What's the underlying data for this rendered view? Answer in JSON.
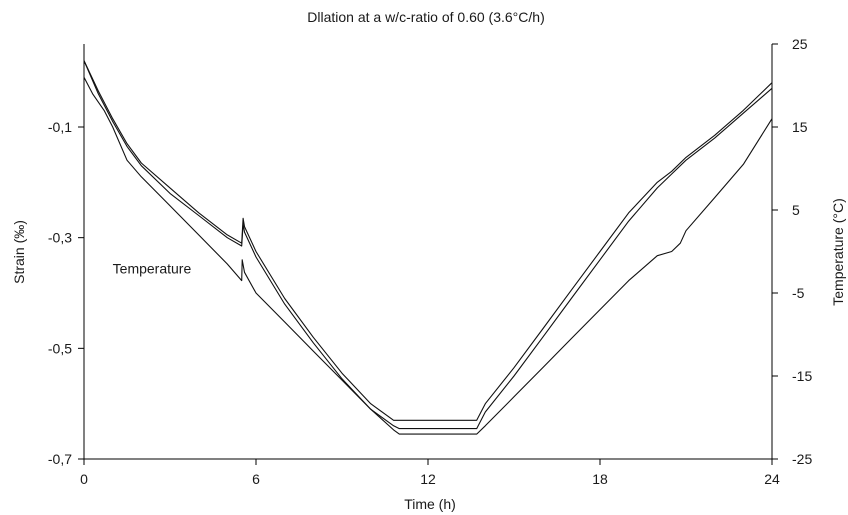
{
  "chart_data": {
    "type": "line",
    "title": "Dllation at a w/c-ratio of 0.60 (3.6°C/h)",
    "xlabel": "Time (h)",
    "ylabel": "Strain (‰)",
    "y2label": "Temperature (°C)",
    "xlim": [
      0,
      24
    ],
    "ylim": [
      -0.7,
      0.05
    ],
    "y2lim": [
      -25,
      25
    ],
    "xticks": [
      "0",
      "6",
      "12",
      "18",
      "24"
    ],
    "yticks": [
      "-0,1",
      "-0,3",
      "-0,5",
      "-0,7"
    ],
    "y2ticks": [
      "25",
      "15",
      "5",
      "-5",
      "-15",
      "-25"
    ],
    "grid": false,
    "annotations": [
      {
        "text": "Temperature",
        "x": 1.0,
        "y": -0.365
      }
    ],
    "series": [
      {
        "name": "",
        "axis": "left",
        "x": [
          0,
          0.5,
          1,
          1.5,
          2,
          3,
          4,
          5,
          5.5,
          5.55,
          5.6,
          6,
          7,
          8,
          9,
          10,
          10.8,
          11,
          12,
          13,
          13.7,
          14,
          15,
          16,
          17,
          18,
          19,
          20,
          20.5,
          21,
          22,
          23,
          24
        ],
        "y": [
          0.02,
          -0.035,
          -0.085,
          -0.13,
          -0.165,
          -0.21,
          -0.255,
          -0.295,
          -0.31,
          -0.265,
          -0.28,
          -0.325,
          -0.41,
          -0.48,
          -0.545,
          -0.6,
          -0.63,
          -0.63,
          -0.63,
          -0.63,
          -0.63,
          -0.6,
          -0.535,
          -0.465,
          -0.395,
          -0.325,
          -0.255,
          -0.2,
          -0.18,
          -0.155,
          -0.115,
          -0.07,
          -0.02
        ]
      },
      {
        "name": "",
        "axis": "left",
        "x": [
          0,
          0.5,
          1,
          1.5,
          2,
          3,
          4,
          5,
          5.5,
          5.55,
          5.6,
          6,
          7,
          8,
          9,
          10,
          10.8,
          11,
          12,
          13,
          13.7,
          14,
          15,
          16,
          17,
          18,
          19,
          20,
          20.5,
          21,
          22,
          23,
          24
        ],
        "y": [
          0.02,
          -0.04,
          -0.09,
          -0.135,
          -0.17,
          -0.22,
          -0.26,
          -0.3,
          -0.315,
          -0.275,
          -0.29,
          -0.335,
          -0.42,
          -0.49,
          -0.555,
          -0.61,
          -0.64,
          -0.645,
          -0.645,
          -0.645,
          -0.645,
          -0.615,
          -0.55,
          -0.48,
          -0.41,
          -0.34,
          -0.27,
          -0.21,
          -0.185,
          -0.16,
          -0.12,
          -0.075,
          -0.03
        ]
      },
      {
        "name": "Temperature",
        "axis": "right",
        "x": [
          0,
          0.3,
          0.7,
          1,
          1.5,
          2,
          3,
          4,
          5,
          5.5,
          5.52,
          5.6,
          6,
          7,
          8,
          9,
          10,
          10.8,
          11,
          12,
          13,
          13.7,
          14,
          15,
          16,
          17,
          18,
          19,
          20,
          20.5,
          20.8,
          21,
          22,
          23,
          24
        ],
        "y": [
          21,
          19,
          17,
          15,
          11,
          9,
          5.5,
          2,
          -1.5,
          -3.5,
          -1,
          -2.5,
          -5,
          -8.5,
          -12,
          -15.5,
          -19,
          -21.5,
          -22,
          -22,
          -22,
          -22,
          -21,
          -17.5,
          -14,
          -10.5,
          -7,
          -3.5,
          -0.5,
          0,
          1,
          2.5,
          6.5,
          10.5,
          16
        ]
      }
    ]
  }
}
